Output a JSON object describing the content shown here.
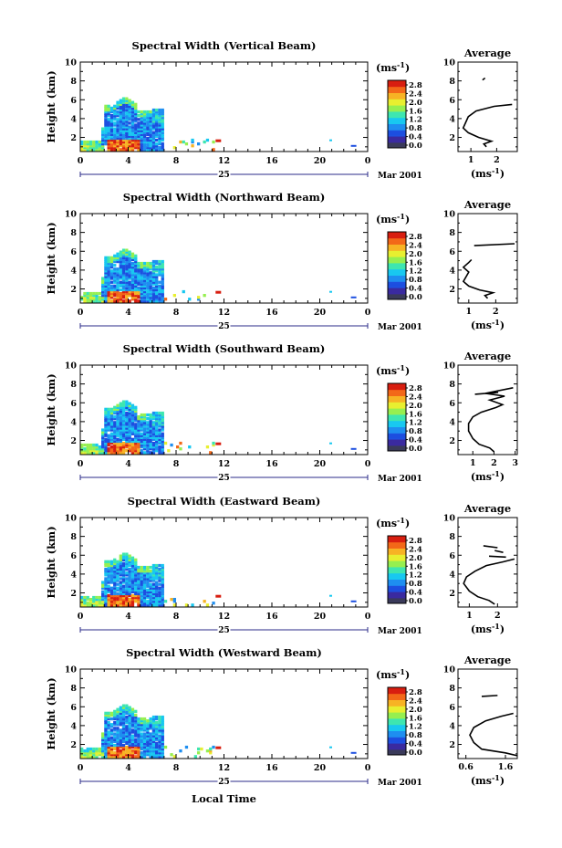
{
  "figure": {
    "x_axis_title": "Local Time",
    "date_day": "25",
    "date_month": "Mar 2001",
    "cbar_unit": "(ms",
    "cbar_unit_sup": "-1",
    "cbar_unit_close": ")",
    "avg_unit": "(ms",
    "avg_unit_sup": "-1",
    "avg_unit_close": ")",
    "colorbar_ticks": [
      "0.0",
      "0.4",
      "0.8",
      "1.2",
      "1.6",
      "2.0",
      "2.4",
      "2.8"
    ],
    "colorbar_colors": [
      "#3a3a5a",
      "#3a2aa0",
      "#1d4fe0",
      "#1e8ef0",
      "#18c8f0",
      "#3ee6b0",
      "#96ef50",
      "#e8ef30",
      "#f7b324",
      "#f36818",
      "#d81e10"
    ]
  },
  "chart_data": [
    {
      "type": "heatmap",
      "title": "Spectral Width (Vertical Beam)",
      "ylabel": "Height (km)",
      "xlabel": "Local Time",
      "x_ticks": [
        "0",
        "4",
        "8",
        "12",
        "16",
        "20",
        "0"
      ],
      "y_ticks": [
        "2",
        "4",
        "6",
        "8",
        "10"
      ],
      "xlim": [
        0,
        24
      ],
      "ylim": [
        0.5,
        10
      ],
      "colorbar": {
        "unit": "ms-1",
        "range": [
          0,
          2.8
        ]
      },
      "average_profile": {
        "title": "Average",
        "xlabel": "ms-1",
        "x_ticks": [
          "1",
          "2"
        ],
        "xlim": [
          0.5,
          2.8
        ],
        "points": [
          [
            1.6,
            1.0
          ],
          [
            1.5,
            1.3
          ],
          [
            1.8,
            1.6
          ],
          [
            1.3,
            2.0
          ],
          [
            0.9,
            2.5
          ],
          [
            0.7,
            3.0
          ],
          [
            0.8,
            3.6
          ],
          [
            0.9,
            4.2
          ],
          [
            1.2,
            4.8
          ],
          [
            1.9,
            5.3
          ],
          [
            2.6,
            5.5
          ]
        ],
        "segments": [
          [
            [
              1.45,
              8.1
            ],
            [
              1.55,
              8.3
            ]
          ]
        ]
      }
    },
    {
      "type": "heatmap",
      "title": "Spectral Width (Northward Beam)",
      "ylabel": "Height (km)",
      "xlabel": "Local Time",
      "x_ticks": [
        "0",
        "4",
        "8",
        "12",
        "16",
        "20",
        "0"
      ],
      "y_ticks": [
        "2",
        "4",
        "6",
        "8",
        "10"
      ],
      "xlim": [
        0,
        24
      ],
      "ylim": [
        0.5,
        10
      ],
      "colorbar": {
        "unit": "ms-1",
        "range": [
          0,
          2.8
        ]
      },
      "average_profile": {
        "title": "Average",
        "xlabel": "ms-1",
        "x_ticks": [
          "1",
          "2"
        ],
        "xlim": [
          0.6,
          2.8
        ],
        "points": [
          [
            1.7,
            1.0
          ],
          [
            1.6,
            1.3
          ],
          [
            1.9,
            1.6
          ],
          [
            1.4,
            1.9
          ],
          [
            1.0,
            2.3
          ],
          [
            0.8,
            2.8
          ],
          [
            0.9,
            3.3
          ],
          [
            1.0,
            3.8
          ],
          [
            0.8,
            4.3
          ],
          [
            1.0,
            4.8
          ],
          [
            1.1,
            5.1
          ]
        ],
        "segments": [
          [
            [
              1.2,
              6.6
            ],
            [
              2.7,
              6.8
            ]
          ]
        ]
      }
    },
    {
      "type": "heatmap",
      "title": "Spectral Width (Southward Beam)",
      "ylabel": "Height (km)",
      "xlabel": "Local Time",
      "x_ticks": [
        "0",
        "4",
        "8",
        "12",
        "16",
        "20",
        "0"
      ],
      "y_ticks": [
        "2",
        "4",
        "6",
        "8",
        "10"
      ],
      "xlim": [
        0,
        24
      ],
      "ylim": [
        0.5,
        10
      ],
      "colorbar": {
        "unit": "ms-1",
        "range": [
          0,
          2.8
        ]
      },
      "average_profile": {
        "title": "Average",
        "xlabel": "ms-1",
        "x_ticks": [
          "1",
          "2",
          "3"
        ],
        "xlim": [
          0.3,
          3.1
        ],
        "points": [
          [
            2.0,
            0.8
          ],
          [
            1.8,
            1.2
          ],
          [
            1.3,
            1.6
          ],
          [
            1.0,
            2.2
          ],
          [
            0.8,
            3.0
          ],
          [
            0.8,
            3.8
          ],
          [
            1.0,
            4.5
          ],
          [
            1.4,
            5.0
          ],
          [
            2.1,
            5.5
          ],
          [
            2.4,
            5.8
          ],
          [
            1.8,
            6.3
          ],
          [
            2.5,
            6.7
          ],
          [
            1.6,
            7.0
          ],
          [
            2.9,
            7.6
          ]
        ],
        "segments": [
          [
            [
              1.1,
              6.9
            ],
            [
              2.2,
              7.1
            ]
          ]
        ]
      }
    },
    {
      "type": "heatmap",
      "title": "Spectral Width (Eastward Beam)",
      "ylabel": "Height (km)",
      "xlabel": "Local Time",
      "x_ticks": [
        "0",
        "4",
        "8",
        "12",
        "16",
        "20",
        "0"
      ],
      "y_ticks": [
        "2",
        "4",
        "6",
        "8",
        "10"
      ],
      "xlim": [
        0,
        24
      ],
      "ylim": [
        0.5,
        10
      ],
      "colorbar": {
        "unit": "ms-1",
        "range": [
          0,
          2.8
        ]
      },
      "average_profile": {
        "title": "Average",
        "xlabel": "ms-1",
        "x_ticks": [
          "1",
          "2"
        ],
        "xlim": [
          0.6,
          2.7
        ],
        "points": [
          [
            1.9,
            0.8
          ],
          [
            1.7,
            1.2
          ],
          [
            1.3,
            1.6
          ],
          [
            1.0,
            2.2
          ],
          [
            0.8,
            3.0
          ],
          [
            0.9,
            3.7
          ],
          [
            1.2,
            4.3
          ],
          [
            1.6,
            4.9
          ],
          [
            2.2,
            5.3
          ],
          [
            2.6,
            5.6
          ]
        ],
        "segments": [
          [
            [
              1.5,
              7.0
            ],
            [
              2.0,
              6.8
            ]
          ],
          [
            [
              1.9,
              6.5
            ],
            [
              2.2,
              6.3
            ]
          ],
          [
            [
              1.7,
              5.9
            ],
            [
              2.3,
              5.8
            ]
          ]
        ]
      }
    },
    {
      "type": "heatmap",
      "title": "Spectral Width (Westward Beam)",
      "ylabel": "Height (km)",
      "xlabel": "Local Time",
      "x_ticks": [
        "0",
        "4",
        "8",
        "12",
        "16",
        "20",
        "0"
      ],
      "y_ticks": [
        "2",
        "4",
        "6",
        "8",
        "10"
      ],
      "xlim": [
        0,
        24
      ],
      "ylim": [
        0.5,
        10
      ],
      "colorbar": {
        "unit": "ms-1",
        "range": [
          0,
          2.8
        ]
      },
      "average_profile": {
        "title": "Average",
        "xlabel": "ms-1",
        "x_ticks": [
          "0.6",
          "1.6"
        ],
        "xlim": [
          0.4,
          1.9
        ],
        "points": [
          [
            1.9,
            0.8
          ],
          [
            1.6,
            1.1
          ],
          [
            1.0,
            1.5
          ],
          [
            0.8,
            2.2
          ],
          [
            0.7,
            3.0
          ],
          [
            0.8,
            3.8
          ],
          [
            1.1,
            4.5
          ],
          [
            1.5,
            5.0
          ],
          [
            1.8,
            5.3
          ]
        ],
        "segments": [
          [
            [
              1.0,
              7.1
            ],
            [
              1.4,
              7.2
            ]
          ]
        ]
      }
    }
  ]
}
